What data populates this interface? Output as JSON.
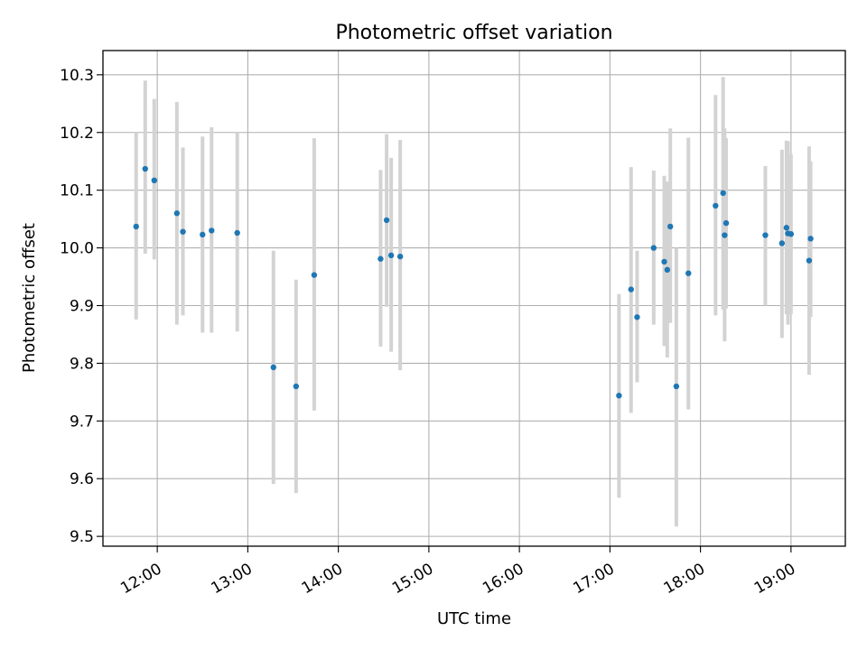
{
  "chart_data": {
    "type": "scatter",
    "title": "Photometric offset variation",
    "xlabel": "UTC time",
    "ylabel": "Photometric offset",
    "x_ticks": [
      "12:00",
      "13:00",
      "14:00",
      "15:00",
      "16:00",
      "17:00",
      "18:00",
      "19:00"
    ],
    "y_ticks": [
      "9.5",
      "9.6",
      "9.7",
      "9.8",
      "9.9",
      "10.0",
      "10.1",
      "10.2",
      "10.3"
    ],
    "xlim": [
      "11:24",
      "19:36"
    ],
    "ylim": [
      9.483,
      10.342
    ],
    "grid": true,
    "point_color": "#1f77b4",
    "errorbar_color": "#d3d3d3",
    "series": [
      {
        "points": [
          {
            "x": "11:46",
            "y": 10.037,
            "low": 9.876,
            "high": 10.2
          },
          {
            "x": "11:52",
            "y": 10.137,
            "low": 9.99,
            "high": 10.29
          },
          {
            "x": "11:58",
            "y": 10.117,
            "low": 9.98,
            "high": 10.258
          },
          {
            "x": "12:13",
            "y": 10.06,
            "low": 9.867,
            "high": 10.253
          },
          {
            "x": "12:17",
            "y": 10.028,
            "low": 9.883,
            "high": 10.174
          },
          {
            "x": "12:30",
            "y": 10.023,
            "low": 9.853,
            "high": 10.193
          },
          {
            "x": "12:36",
            "y": 10.03,
            "low": 9.853,
            "high": 10.209
          },
          {
            "x": "12:53",
            "y": 10.026,
            "low": 9.855,
            "high": 10.2
          },
          {
            "x": "13:17",
            "y": 9.793,
            "low": 9.591,
            "high": 9.995
          },
          {
            "x": "13:32",
            "y": 9.76,
            "low": 9.575,
            "high": 9.945
          },
          {
            "x": "13:44",
            "y": 9.953,
            "low": 9.718,
            "high": 10.19
          },
          {
            "x": "14:28",
            "y": 9.981,
            "low": 9.829,
            "high": 10.135
          },
          {
            "x": "14:32",
            "y": 10.048,
            "low": 9.898,
            "high": 10.197
          },
          {
            "x": "14:35",
            "y": 9.987,
            "low": 9.82,
            "high": 10.156
          },
          {
            "x": "14:41",
            "y": 9.985,
            "low": 9.788,
            "high": 10.187
          },
          {
            "x": "17:06",
            "y": 9.744,
            "low": 9.567,
            "high": 9.92
          },
          {
            "x": "17:14",
            "y": 9.928,
            "low": 9.714,
            "high": 10.14
          },
          {
            "x": "17:18",
            "y": 9.88,
            "low": 9.767,
            "high": 9.995
          },
          {
            "x": "17:29",
            "y": 10.0,
            "low": 9.867,
            "high": 10.134
          },
          {
            "x": "17:36",
            "y": 9.976,
            "low": 9.83,
            "high": 10.125
          },
          {
            "x": "17:38",
            "y": 9.962,
            "low": 9.81,
            "high": 10.115
          },
          {
            "x": "17:40",
            "y": 10.037,
            "low": 9.87,
            "high": 10.207
          },
          {
            "x": "17:44",
            "y": 9.76,
            "low": 9.517,
            "high": 10.0
          },
          {
            "x": "17:52",
            "y": 9.956,
            "low": 9.72,
            "high": 10.191
          },
          {
            "x": "18:10",
            "y": 10.073,
            "low": 9.883,
            "high": 10.265
          },
          {
            "x": "18:15",
            "y": 10.095,
            "low": 9.893,
            "high": 10.296
          },
          {
            "x": "18:16",
            "y": 10.022,
            "low": 9.838,
            "high": 10.207
          },
          {
            "x": "18:17",
            "y": 10.043,
            "low": 9.895,
            "high": 10.19
          },
          {
            "x": "18:43",
            "y": 10.022,
            "low": 9.9,
            "high": 10.142
          },
          {
            "x": "18:54",
            "y": 10.008,
            "low": 9.844,
            "high": 10.17
          },
          {
            "x": "18:57",
            "y": 10.035,
            "low": 9.885,
            "high": 10.186
          },
          {
            "x": "18:58",
            "y": 10.025,
            "low": 9.867,
            "high": 10.185
          },
          {
            "x": "19:00",
            "y": 10.024,
            "low": 9.885,
            "high": 10.162
          },
          {
            "x": "19:12",
            "y": 9.978,
            "low": 9.78,
            "high": 10.176
          },
          {
            "x": "19:13",
            "y": 10.016,
            "low": 9.88,
            "high": 10.15
          }
        ]
      }
    ]
  }
}
